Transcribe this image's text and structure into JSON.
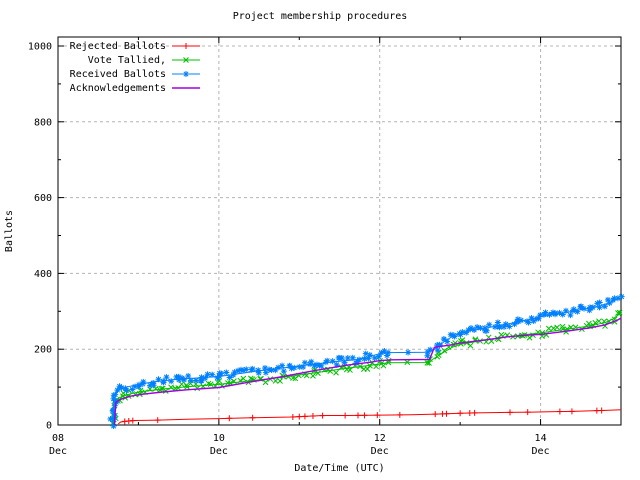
{
  "chart_data": {
    "type": "line",
    "title": "Project membership procedures",
    "xlabel": "Date/Time (UTC)",
    "ylabel": "Ballots",
    "x_axis": {
      "unit": "days since 08 Dec 00:00 UTC",
      "range_days": [
        0,
        7
      ],
      "major_ticks": [
        {
          "t": 0,
          "day": "08",
          "month": "Dec"
        },
        {
          "t": 2,
          "day": "10",
          "month": "Dec"
        },
        {
          "t": 4,
          "day": "12",
          "month": "Dec"
        },
        {
          "t": 6,
          "day": "14",
          "month": "Dec"
        }
      ],
      "minor_ticks_t": [
        1,
        3,
        5
      ]
    },
    "y_axis": {
      "range": [
        0,
        1000
      ],
      "major_ticks": [
        0,
        200,
        400,
        600,
        800,
        1000
      ],
      "tick_labels": [
        "0",
        "200",
        "400",
        "600",
        "800",
        "1000"
      ],
      "minor_ticks": [
        100,
        300,
        500,
        700,
        900
      ]
    },
    "grid": true,
    "grid_color": "#b4b4b4",
    "legend_position": "top-left-inside",
    "series": [
      {
        "name": "Rejected Ballots",
        "slug": "rejected-ballots",
        "color": "#ff0000",
        "marker": "plus",
        "marker_mode": "explicit",
        "points": [
          [
            0.75,
            3
          ],
          [
            0.78,
            8
          ],
          [
            0.85,
            10
          ],
          [
            0.95,
            12
          ],
          [
            1.25,
            13
          ],
          [
            1.6,
            15
          ],
          [
            2.0,
            17
          ],
          [
            2.4,
            19
          ],
          [
            2.9,
            21
          ],
          [
            3.1,
            23
          ],
          [
            3.3,
            25
          ],
          [
            3.6,
            25
          ],
          [
            4.0,
            26
          ],
          [
            4.4,
            27
          ],
          [
            4.75,
            29
          ],
          [
            5.0,
            31
          ],
          [
            5.2,
            32
          ],
          [
            5.5,
            33
          ],
          [
            5.9,
            34
          ],
          [
            6.1,
            35
          ],
          [
            6.4,
            36
          ],
          [
            6.7,
            38
          ],
          [
            6.85,
            39
          ],
          [
            7.0,
            40
          ]
        ],
        "marker_ts": [
          0.83,
          0.88,
          0.93,
          1.24,
          2.13,
          2.42,
          2.92,
          3.0,
          3.07,
          3.17,
          3.29,
          3.57,
          3.73,
          3.81,
          3.97,
          4.25,
          4.69,
          4.78,
          4.83,
          5.0,
          5.12,
          5.18,
          5.62,
          5.84,
          6.24,
          6.39,
          6.7,
          6.76
        ]
      },
      {
        "name": "Vote Tallied,",
        "slug": "vote-tallied",
        "color": "#00c000",
        "marker": "cross",
        "marker_mode": "dense",
        "points": [
          [
            0.68,
            0
          ],
          [
            0.7,
            25
          ],
          [
            0.72,
            55
          ],
          [
            0.75,
            70
          ],
          [
            0.8,
            76
          ],
          [
            0.9,
            82
          ],
          [
            1.0,
            87
          ],
          [
            1.3,
            95
          ],
          [
            1.6,
            101
          ],
          [
            2.0,
            107
          ],
          [
            2.4,
            117
          ],
          [
            2.8,
            126
          ],
          [
            3.2,
            138
          ],
          [
            3.6,
            150
          ],
          [
            3.9,
            158
          ],
          [
            4.0,
            161
          ],
          [
            4.1,
            164
          ],
          [
            4.6,
            165
          ],
          [
            4.75,
            186
          ],
          [
            4.9,
            205
          ],
          [
            5.0,
            213
          ],
          [
            5.2,
            220
          ],
          [
            5.5,
            230
          ],
          [
            5.8,
            238
          ],
          [
            6.0,
            243
          ],
          [
            6.3,
            252
          ],
          [
            6.6,
            261
          ],
          [
            6.8,
            270
          ],
          [
            6.9,
            280
          ],
          [
            7.0,
            296
          ]
        ]
      },
      {
        "name": "Received Ballots",
        "slug": "received-ballots",
        "color": "#0080ff",
        "marker": "star",
        "marker_mode": "dense",
        "points": [
          [
            0.67,
            0
          ],
          [
            0.69,
            30
          ],
          [
            0.7,
            60
          ],
          [
            0.72,
            85
          ],
          [
            0.78,
            95
          ],
          [
            0.85,
            100
          ],
          [
            1.0,
            107
          ],
          [
            1.2,
            114
          ],
          [
            1.5,
            121
          ],
          [
            1.8,
            125
          ],
          [
            2.0,
            128
          ],
          [
            2.3,
            137
          ],
          [
            2.6,
            146
          ],
          [
            2.9,
            153
          ],
          [
            3.2,
            161
          ],
          [
            3.5,
            168
          ],
          [
            3.7,
            172
          ],
          [
            3.85,
            180
          ],
          [
            4.0,
            188
          ],
          [
            4.1,
            191
          ],
          [
            4.6,
            192
          ],
          [
            4.7,
            202
          ],
          [
            4.8,
            220
          ],
          [
            4.9,
            233
          ],
          [
            5.0,
            242
          ],
          [
            5.1,
            248
          ],
          [
            5.3,
            255
          ],
          [
            5.5,
            263
          ],
          [
            5.7,
            271
          ],
          [
            5.9,
            280
          ],
          [
            6.0,
            286
          ],
          [
            6.2,
            292
          ],
          [
            6.4,
            300
          ],
          [
            6.6,
            308
          ],
          [
            6.75,
            315
          ],
          [
            6.85,
            322
          ],
          [
            7.0,
            336
          ]
        ]
      },
      {
        "name": "Acknowledgements",
        "slug": "acknowledgements",
        "color": "#a000e0",
        "marker": "none",
        "marker_mode": "none",
        "points": [
          [
            0.7,
            0
          ],
          [
            0.72,
            60
          ],
          [
            0.78,
            68
          ],
          [
            0.9,
            76
          ],
          [
            1.0,
            80
          ],
          [
            1.3,
            87
          ],
          [
            1.6,
            93
          ],
          [
            2.0,
            99
          ],
          [
            2.4,
            114
          ],
          [
            2.8,
            128
          ],
          [
            3.2,
            144
          ],
          [
            3.6,
            158
          ],
          [
            3.9,
            166
          ],
          [
            4.0,
            170
          ],
          [
            4.15,
            172
          ],
          [
            4.62,
            173
          ],
          [
            4.68,
            205
          ],
          [
            4.9,
            212
          ],
          [
            5.0,
            216
          ],
          [
            5.3,
            224
          ],
          [
            5.6,
            233
          ],
          [
            5.9,
            238
          ],
          [
            6.0,
            239
          ],
          [
            6.3,
            247
          ],
          [
            6.6,
            256
          ],
          [
            6.8,
            264
          ],
          [
            6.95,
            276
          ],
          [
            7.0,
            282
          ]
        ]
      }
    ]
  }
}
